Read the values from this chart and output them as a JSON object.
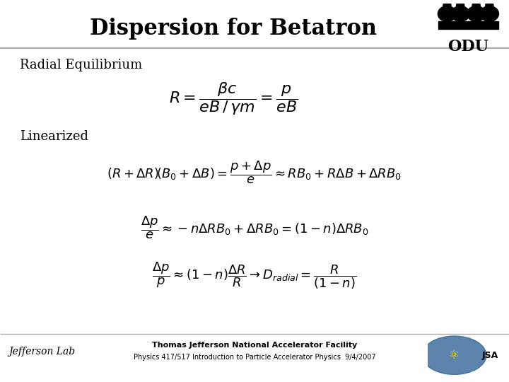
{
  "title": "Dispersion for Betatron",
  "title_fontsize": 22,
  "slide_bg": "#ffffff",
  "header_line_color": "#aaaaaa",
  "footer_line_color": "#aaaaaa",
  "section1_label": "Radial Equilibrium",
  "section2_label": "Linearized",
  "footer_center_line1": "Thomas Jefferson National Accelerator Facility",
  "footer_center_line2": "Physics 417/517 Introduction to Particle Accelerator Physics  9/4/2007",
  "text_color": "#000000",
  "label_fontsize": 13,
  "eq1_fontsize": 16,
  "eq2_fontsize": 13,
  "eq3_fontsize": 13,
  "eq4_fontsize": 13,
  "footer_fontsize": 8,
  "footer_small_fontsize": 7
}
